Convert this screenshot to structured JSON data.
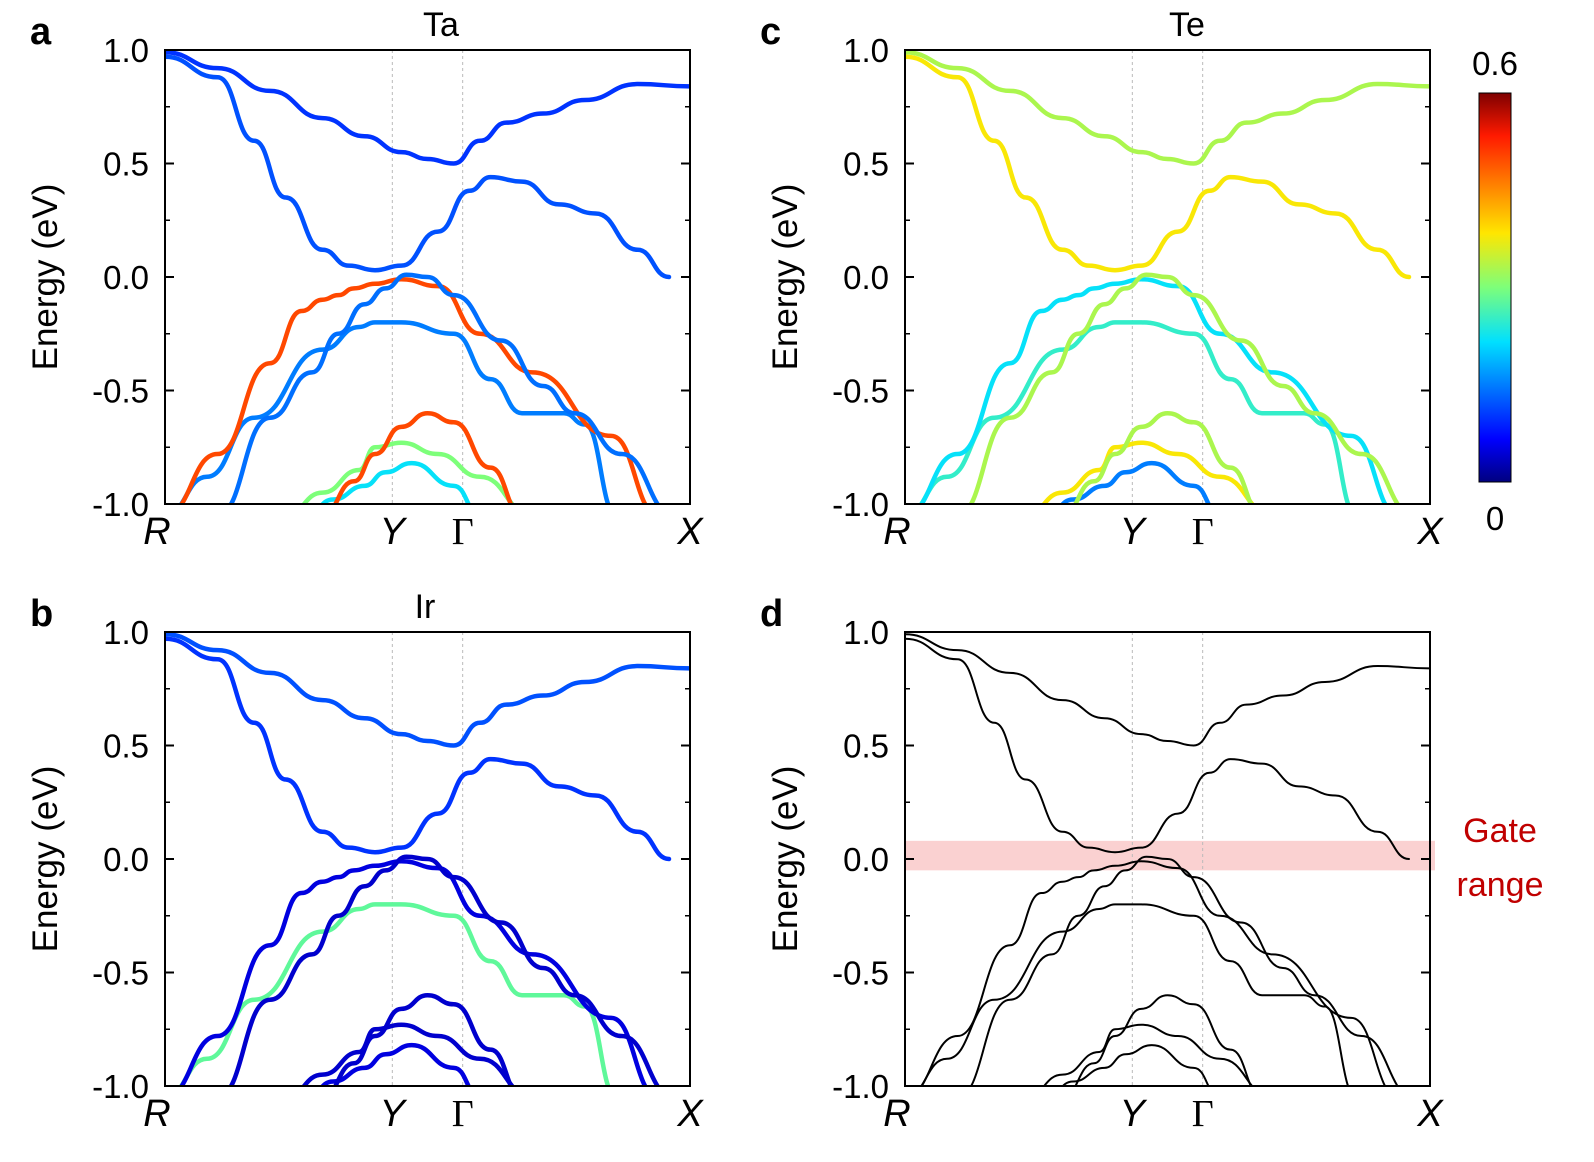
{
  "chart_data": [
    {
      "panel": "a",
      "type": "line",
      "title": "Ta",
      "ylabel": "Energy (eV)",
      "ylim": [
        -1.0,
        1.0
      ],
      "yticks": [
        "1.0",
        "0.5",
        "0.0",
        "-0.5",
        "-1.0"
      ],
      "kpoints": [
        "R",
        "Y",
        "Γ",
        "X"
      ],
      "coloring": "weight",
      "weights": [
        0.15,
        0.5,
        0.3,
        0.22,
        0.5,
        0.14,
        0.12,
        0.1
      ]
    },
    {
      "panel": "b",
      "type": "line",
      "title": "Ir",
      "ylabel": "Energy (eV)",
      "ylim": [
        -1.0,
        1.0
      ],
      "yticks": [
        "1.0",
        "0.5",
        "0.0",
        "-0.5",
        "-1.0"
      ],
      "kpoints": [
        "R",
        "Y",
        "Γ",
        "X"
      ],
      "coloring": "weight",
      "weights": [
        0.28,
        0.05,
        0.04,
        0.05,
        0.04,
        0.04,
        0.1,
        0.12
      ]
    },
    {
      "panel": "c",
      "type": "line",
      "title": "Te",
      "ylabel": "Energy (eV)",
      "ylim": [
        -1.0,
        1.0
      ],
      "yticks": [
        "1.0",
        "0.5",
        "0.0",
        "-0.5",
        "-1.0"
      ],
      "kpoints": [
        "R",
        "Y",
        "Γ",
        "X"
      ],
      "coloring": "weight",
      "weights": [
        0.25,
        0.22,
        0.38,
        0.15,
        0.33,
        0.33,
        0.38,
        0.33
      ]
    },
    {
      "panel": "d",
      "type": "line",
      "title": "",
      "ylabel": "Energy (eV)",
      "ylim": [
        -1.0,
        1.0
      ],
      "yticks": [
        "1.0",
        "0.5",
        "0.0",
        "-0.5",
        "-1.0"
      ],
      "kpoints": [
        "R",
        "Y",
        "Γ",
        "X"
      ],
      "coloring": "black",
      "gate_range": [
        -0.05,
        0.08
      ],
      "gate_label": [
        "Gate",
        "range"
      ]
    }
  ],
  "colorbar": {
    "max_label": "0.6",
    "min_label": "0",
    "max": 0.6,
    "min": 0
  },
  "bands": [
    [
      [
        0,
        -1.05
      ],
      [
        0.08,
        -0.88
      ],
      [
        0.17,
        -0.62
      ],
      [
        0.3,
        -0.32
      ],
      [
        0.37,
        -0.22
      ],
      [
        0.4,
        -0.2
      ],
      [
        0.45,
        -0.2
      ],
      [
        0.55,
        -0.25
      ],
      [
        0.62,
        -0.45
      ],
      [
        0.68,
        -0.6
      ],
      [
        0.76,
        -0.6
      ],
      [
        0.8,
        -0.65
      ],
      [
        0.86,
        -1.05
      ]
    ],
    [
      [
        0,
        -1.05
      ],
      [
        0.1,
        -0.78
      ],
      [
        0.2,
        -0.38
      ],
      [
        0.26,
        -0.15
      ],
      [
        0.3,
        -0.1
      ],
      [
        0.33,
        -0.08
      ],
      [
        0.36,
        -0.05
      ],
      [
        0.4,
        -0.03
      ],
      [
        0.45,
        -0.01
      ],
      [
        0.52,
        -0.04
      ],
      [
        0.6,
        -0.25
      ],
      [
        0.7,
        -0.42
      ],
      [
        0.85,
        -0.7
      ],
      [
        0.94,
        -1.05
      ]
    ],
    [
      [
        0.23,
        -1.05
      ],
      [
        0.3,
        -0.95
      ],
      [
        0.37,
        -0.85
      ],
      [
        0.4,
        -0.75
      ],
      [
        0.45,
        -0.73
      ],
      [
        0.52,
        -0.78
      ],
      [
        0.6,
        -0.88
      ],
      [
        0.7,
        -1.05
      ]
    ],
    [
      [
        0.27,
        -1.05
      ],
      [
        0.32,
        -0.98
      ],
      [
        0.38,
        -0.92
      ],
      [
        0.42,
        -0.86
      ],
      [
        0.47,
        -0.82
      ],
      [
        0.55,
        -0.92
      ],
      [
        0.6,
        -1.05
      ]
    ],
    [
      [
        0.3,
        -1.05
      ],
      [
        0.36,
        -0.9
      ],
      [
        0.4,
        -0.78
      ],
      [
        0.45,
        -0.66
      ],
      [
        0.5,
        -0.6
      ],
      [
        0.55,
        -0.64
      ],
      [
        0.62,
        -0.84
      ],
      [
        0.68,
        -1.05
      ]
    ],
    [
      [
        0.1,
        -1.05
      ],
      [
        0.2,
        -0.62
      ],
      [
        0.28,
        -0.42
      ],
      [
        0.33,
        -0.25
      ],
      [
        0.38,
        -0.12
      ],
      [
        0.42,
        -0.05
      ],
      [
        0.46,
        0.01
      ],
      [
        0.5,
        0.0
      ],
      [
        0.55,
        -0.08
      ],
      [
        0.64,
        -0.28
      ],
      [
        0.72,
        -0.48
      ],
      [
        0.78,
        -0.6
      ],
      [
        0.87,
        -0.78
      ],
      [
        0.97,
        -1.05
      ]
    ],
    [
      [
        0,
        0.97
      ],
      [
        0.1,
        0.88
      ],
      [
        0.17,
        0.6
      ],
      [
        0.23,
        0.35
      ],
      [
        0.3,
        0.12
      ],
      [
        0.35,
        0.05
      ],
      [
        0.4,
        0.03
      ],
      [
        0.45,
        0.05
      ],
      [
        0.52,
        0.2
      ],
      [
        0.58,
        0.38
      ],
      [
        0.62,
        0.44
      ],
      [
        0.68,
        0.42
      ],
      [
        0.75,
        0.32
      ],
      [
        0.82,
        0.28
      ],
      [
        0.9,
        0.12
      ],
      [
        0.96,
        0.0
      ]
    ],
    [
      [
        0,
        0.99
      ],
      [
        0.1,
        0.92
      ],
      [
        0.2,
        0.82
      ],
      [
        0.3,
        0.7
      ],
      [
        0.38,
        0.62
      ],
      [
        0.45,
        0.55
      ],
      [
        0.5,
        0.52
      ],
      [
        0.55,
        0.5
      ],
      [
        0.6,
        0.6
      ],
      [
        0.65,
        0.68
      ],
      [
        0.72,
        0.72
      ],
      [
        0.8,
        0.78
      ],
      [
        0.9,
        0.85
      ],
      [
        1.0,
        0.84
      ]
    ]
  ]
}
